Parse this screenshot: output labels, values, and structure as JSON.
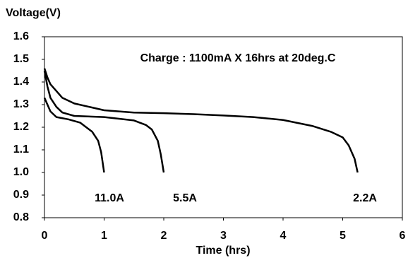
{
  "chart_data": {
    "type": "line",
    "title": "Voltage(V)",
    "x_label": "Time (hrs)",
    "annotation": "Charge : 1100mA X 16hrs at 20deg.C",
    "xlim": [
      0,
      6
    ],
    "xticks": [
      0,
      1,
      2,
      3,
      4,
      5,
      6
    ],
    "ylim": [
      0.8,
      1.6
    ],
    "yticks": [
      0.8,
      0.9,
      {
        "value": 1,
        "label": "1.0"
      },
      1.1,
      1.2,
      1.3,
      1.4,
      1.5,
      1.6
    ],
    "grid": false,
    "series": [
      {
        "name": "11.0A",
        "color": "#000000",
        "x": [
          0,
          0.05,
          0.1,
          0.2,
          0.4,
          0.6,
          0.8,
          0.9,
          0.95,
          1.0
        ],
        "values": [
          1.33,
          1.3,
          1.27,
          1.245,
          1.235,
          1.22,
          1.18,
          1.14,
          1.09,
          1.0
        ]
      },
      {
        "name": "5.5A",
        "color": "#000000",
        "x": [
          0,
          0.05,
          0.1,
          0.2,
          0.3,
          0.5,
          1,
          1.5,
          1.7,
          1.8,
          1.9,
          1.95,
          2.0
        ],
        "values": [
          1.45,
          1.38,
          1.33,
          1.29,
          1.265,
          1.25,
          1.245,
          1.23,
          1.21,
          1.19,
          1.14,
          1.08,
          1.0
        ]
      },
      {
        "name": "2.2A",
        "color": "#000000",
        "x": [
          0,
          0.05,
          0.1,
          0.2,
          0.3,
          0.5,
          0.75,
          1,
          1.5,
          2,
          2.5,
          3,
          3.5,
          4,
          4.5,
          4.8,
          5,
          5.1,
          5.2,
          5.25
        ],
        "values": [
          1.46,
          1.42,
          1.39,
          1.36,
          1.33,
          1.305,
          1.29,
          1.275,
          1.265,
          1.262,
          1.258,
          1.252,
          1.245,
          1.232,
          1.205,
          1.18,
          1.155,
          1.12,
          1.06,
          1.0
        ]
      }
    ]
  }
}
